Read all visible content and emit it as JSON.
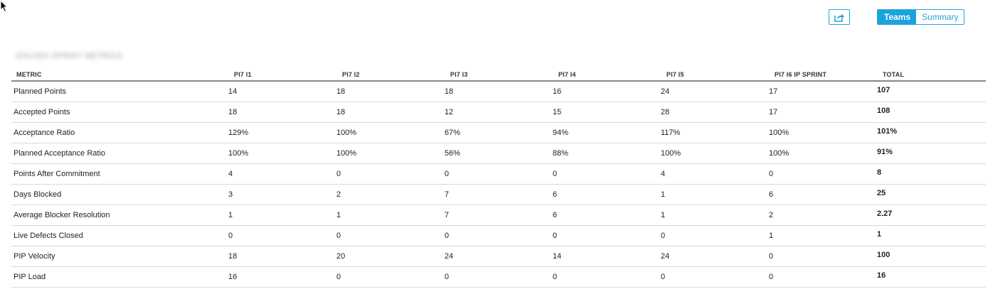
{
  "toolbar": {
    "export_icon": "share-export-icon",
    "toggle": {
      "teams_label": "Teams",
      "summary_label": "Summary",
      "selected": "Teams"
    }
  },
  "report": {
    "title_blurred": "SOLVED SPRINT METRICS"
  },
  "table": {
    "headers": [
      "METRIC",
      "PI7 I1",
      "PI7 I2",
      "PI7 I3",
      "PI7 I4",
      "PI7 I5",
      "PI7 I6 IP SPRINT",
      "TOTAL"
    ],
    "rows": [
      [
        "Planned Points",
        "14",
        "18",
        "18",
        "16",
        "24",
        "17",
        "107"
      ],
      [
        "Accepted Points",
        "18",
        "18",
        "12",
        "15",
        "28",
        "17",
        "108"
      ],
      [
        "Acceptance Ratio",
        "129%",
        "100%",
        "67%",
        "94%",
        "117%",
        "100%",
        "101%"
      ],
      [
        "Planned Acceptance Ratio",
        "100%",
        "100%",
        "56%",
        "88%",
        "100%",
        "100%",
        "91%"
      ],
      [
        "Points After Commitment",
        "4",
        "0",
        "0",
        "0",
        "4",
        "0",
        "8"
      ],
      [
        "Days Blocked",
        "3",
        "2",
        "7",
        "6",
        "1",
        "6",
        "25"
      ],
      [
        "Average Blocker Resolution",
        "1",
        "1",
        "7",
        "6",
        "1",
        "2",
        "2.27"
      ],
      [
        "Live Defects Closed",
        "0",
        "0",
        "0",
        "0",
        "0",
        "1",
        "1"
      ],
      [
        "PIP Velocity",
        "18",
        "20",
        "24",
        "14",
        "24",
        "0",
        "100"
      ],
      [
        "PIP Load",
        "16",
        "0",
        "0",
        "0",
        "0",
        "0",
        "16"
      ]
    ]
  },
  "colors": {
    "accent": "#1aa3dc",
    "row_divider": "#d9d9d9",
    "header_divider": "#888888"
  }
}
